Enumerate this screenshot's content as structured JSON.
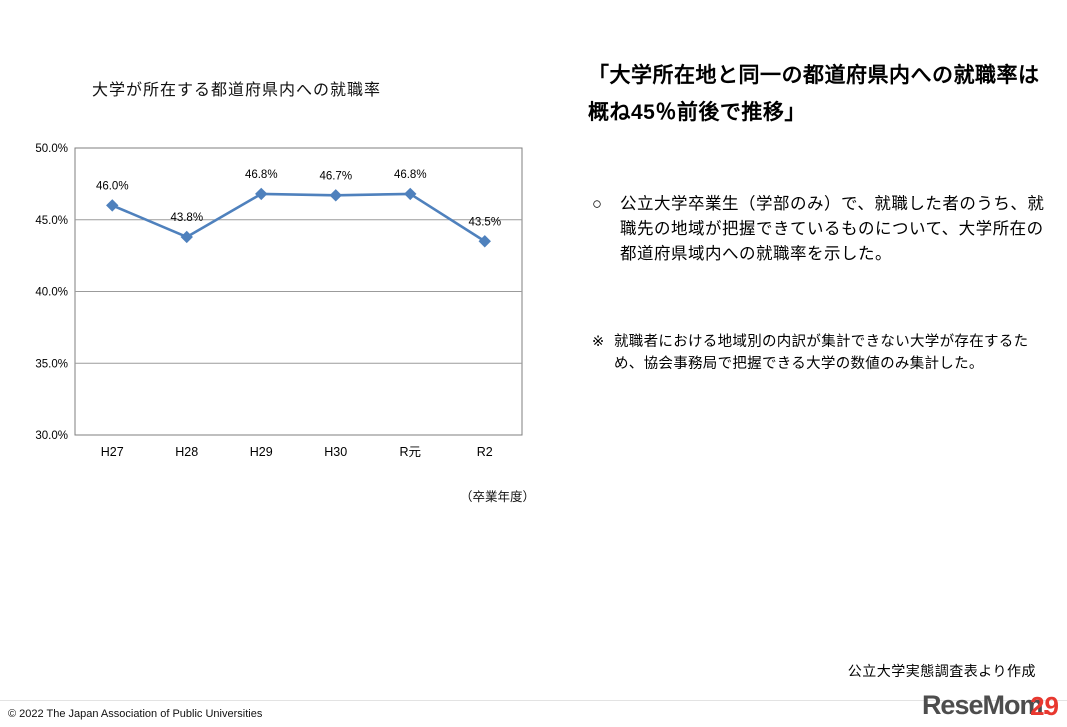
{
  "chart": {
    "title": "大学が所在する都道府県内への就職率",
    "xaxis_note": "（卒業年度）"
  },
  "chart_data": {
    "type": "line",
    "title": "大学が所在する都道府県内への就職率",
    "categories": [
      "H27",
      "H28",
      "H29",
      "H30",
      "R元",
      "R2"
    ],
    "values": [
      46.0,
      43.8,
      46.8,
      46.7,
      46.8,
      43.5
    ],
    "point_labels": [
      "46.0%",
      "43.8%",
      "46.8%",
      "46.7%",
      "46.8%",
      "43.5%"
    ],
    "xlabel": "（卒業年度）",
    "ylabel": "",
    "ylim": [
      30,
      50
    ],
    "yticks": [
      30,
      35,
      40,
      45,
      50
    ],
    "ytick_labels": [
      "30.0%",
      "35.0%",
      "40.0%",
      "45.0%",
      "50.0%"
    ],
    "grid": true,
    "legend": "none",
    "line_color": "#4f81bd"
  },
  "panel": {
    "heading": "「大学所在地と同一の都道府県内への就職率は概ね45％前後で推移」",
    "bullet_marker": "○",
    "bullet_text": "公立大学卒業生（学部のみ）で、就職した者のうち、就職先の地域が把握できているものについて、大学所在の都道府県域内への就職率を示した。",
    "note_marker": "※",
    "note_text": "就職者における地域別の内訳が集計できない大学が存在するため、協会事務局で把握できる大学の数値のみ集計した。",
    "source": "公立大学実態調査表より作成"
  },
  "footer": {
    "copyright": "©  2022  The Japan Association of Public Universities",
    "logo_text": "ReseMom",
    "logo_dot": ".",
    "page_number": "29"
  }
}
